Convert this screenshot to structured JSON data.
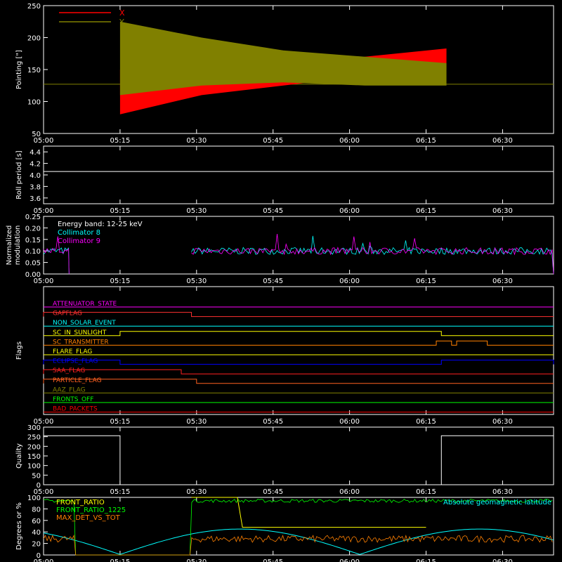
{
  "time_ticks": [
    "05:00",
    "05:15",
    "05:30",
    "05:45",
    "06:00",
    "06:15",
    "06:30"
  ],
  "chart_data": [
    {
      "type": "line",
      "ylabel": "Pointing [\"]",
      "yticks": [
        "50",
        "100",
        "150",
        "200",
        "250"
      ],
      "ylim": [
        50,
        250
      ],
      "xlim": [
        "05:00",
        "06:40"
      ],
      "legend": [
        {
          "name": "X",
          "color": "#ff0000"
        },
        {
          "name": "Y",
          "color": "#808000"
        }
      ],
      "series": [
        {
          "name": "X",
          "color": "#ff0000",
          "envelope": {
            "start": "05:15",
            "end": "06:19",
            "upper": [
              150,
              150,
              155,
              170,
              183
            ],
            "lower": [
              80,
              110,
              125,
              140,
              150
            ]
          }
        },
        {
          "name": "Y",
          "color": "#808000",
          "envelope": {
            "start": "05:15",
            "end": "06:19",
            "upper": [
              225,
              200,
              180,
              170,
              160
            ],
            "lower": [
              110,
              125,
              130,
              125,
              125
            ]
          },
          "baseline": 127
        }
      ]
    },
    {
      "type": "line",
      "ylabel": "Roll period [s]",
      "yticks": [
        "3.6",
        "3.8",
        "4.0",
        "4.2",
        "4.4"
      ],
      "ylim": [
        3.5,
        4.5
      ],
      "xlim": [
        "05:00",
        "06:40"
      ],
      "series": [
        {
          "name": "",
          "color": "#ffffff",
          "value": 4.06
        }
      ]
    },
    {
      "type": "line",
      "ylabel": "Normalized modulation",
      "ylabel_lines": [
        "Normalized",
        "modulation"
      ],
      "yticks": [
        "0.00",
        "0.05",
        "0.10",
        "0.15",
        "0.20",
        "0.25"
      ],
      "ylim": [
        0,
        0.25
      ],
      "xlim": [
        "05:00",
        "06:40"
      ],
      "annotation": "Energy band: 12-25 keV",
      "legend": [
        {
          "name": "Collimator 8",
          "color": "#00ffff"
        },
        {
          "name": "Collimator 9",
          "color": "#ff00ff"
        }
      ],
      "segments": [
        {
          "start": "05:00",
          "end": "05:05",
          "level": 0.1
        },
        {
          "start": "05:29",
          "end": "06:40",
          "level": 0.1
        }
      ]
    },
    {
      "type": "line",
      "ylabel": "Flags",
      "xlim": [
        "05:00",
        "06:40"
      ],
      "flags": [
        {
          "label": "ATTENUATOR_STATE",
          "color": "#ff00ff",
          "highs": []
        },
        {
          "label": "SAA_FLAG",
          "color": "#ff3030",
          "highs": [
            [
              "05:00",
              "05:29"
            ]
          ],
          "name_shown": "GAPFLAG"
        },
        {
          "label": "NON_SOLAR_EVENT",
          "color": "#00ffff",
          "highs": []
        },
        {
          "label": "SC_IN_SUNLIGHT",
          "color": "#ffff00",
          "highs": [
            [
              "05:15",
              "06:18"
            ]
          ]
        },
        {
          "label": "SC_TRANSMITTER",
          "color": "#ff8000",
          "highs": [
            [
              "06:17",
              "06:20"
            ],
            [
              "06:21",
              "06:27"
            ]
          ]
        },
        {
          "label": "FLARE_FLAG",
          "color": "#ffff00",
          "highs": []
        },
        {
          "label": "ECLIPSE_FLAG",
          "color": "#0000ff",
          "highs": [
            [
              "05:00",
              "05:15"
            ],
            [
              "06:18",
              "06:40"
            ]
          ]
        },
        {
          "label": "SAA_FLAG",
          "color": "#ff2020",
          "highs": [
            [
              "05:00",
              "05:27"
            ]
          ]
        },
        {
          "label": "PARTICLE_FLAG",
          "color": "#ff6020",
          "highs": [
            [
              "05:00",
              "05:30"
            ]
          ]
        },
        {
          "label": "AAZ_FLAG",
          "color": "#808000",
          "highs": []
        },
        {
          "label": "FRONTS_OFF",
          "color": "#00ff00",
          "highs": []
        },
        {
          "label": "BAD_PACKETS",
          "color": "#ff0000",
          "highs": []
        }
      ]
    },
    {
      "type": "line",
      "ylabel": "Quality",
      "yticks": [
        "0",
        "50",
        "100",
        "150",
        "200",
        "250",
        "300"
      ],
      "ylim": [
        0,
        300
      ],
      "xlim": [
        "05:00",
        "06:40"
      ],
      "segments": [
        {
          "start": "05:00",
          "end": "05:15",
          "level": 255
        },
        {
          "start": "06:18",
          "end": "06:40",
          "level": 255
        }
      ]
    },
    {
      "type": "line",
      "ylabel": "Degrees or %",
      "yticks": [
        "0",
        "20",
        "40",
        "60",
        "80",
        "100"
      ],
      "ylim": [
        0,
        100
      ],
      "xlim": [
        "05:00",
        "06:40"
      ],
      "legend": [
        {
          "name": "FRONT_RATIO",
          "color": "#ffff00"
        },
        {
          "name": "FRONT_RATIO_1225",
          "color": "#00ff00"
        },
        {
          "name": "MAX_DET_VS_TOT",
          "color": "#ff8000"
        }
      ],
      "annotation": "Absolute geomagnetic latitude",
      "annotation_color": "#00ffff"
    }
  ],
  "labels": {
    "pointing_legend_x": "X",
    "pointing_legend_y": "Y",
    "modulation_band": "Energy band: 12-25 keV",
    "modulation_col8": "Collimator 8",
    "modulation_col9": "Collimator 9",
    "bottom_legend_1": "FRONT_RATIO",
    "bottom_legend_2": "FRONT_RATIO_1225",
    "bottom_legend_3": "MAX_DET_VS_TOT",
    "bottom_annotation": "Absolute geomagnetic latitude"
  },
  "flag_names_shown": [
    "ATTENUATOR_STATE",
    "GAPFLAG",
    "NON_SOLAR_EVENT",
    "SC_IN_SUNLIGHT",
    "SC_TRANSMITTER",
    "FLARE_FLAG",
    "ECLIPSE_FLAG",
    "SAA_FLAG",
    "PARTICLE_FLAG",
    "AAZ_FLAG",
    "FRONTS_OFF",
    "BAD_PACKETS"
  ]
}
